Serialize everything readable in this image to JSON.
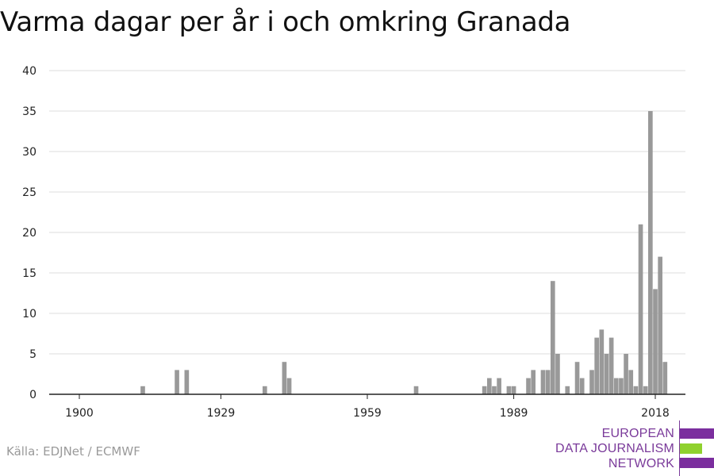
{
  "title": "Varma dagar per år i och omkring Granada",
  "source": "Källa: EDJNet / ECMWF",
  "logo": {
    "lines": [
      "EUROPEAN",
      "DATA JOURNALISM",
      "NETWORK"
    ],
    "colors": {
      "purple": "#7b2e9e",
      "green": "#8fd12e"
    }
  },
  "colors": {
    "bar": "#999999",
    "grid": "#dddddd",
    "axis": "#222222"
  },
  "chart_data": {
    "type": "bar",
    "title": "Varma dagar per år i och omkring Granada",
    "xlabel": "",
    "ylabel": "",
    "ylim": [
      0,
      40
    ],
    "yticks": [
      0,
      5,
      10,
      15,
      20,
      25,
      30,
      35,
      40
    ],
    "xticks": [
      "1900",
      "1929",
      "1959",
      "1989",
      "2018"
    ],
    "xlim": [
      1894,
      2024
    ],
    "grid": true,
    "x": [
      1913,
      1920,
      1922,
      1938,
      1942,
      1943,
      1969,
      1983,
      1984,
      1985,
      1986,
      1988,
      1989,
      1992,
      1993,
      1995,
      1996,
      1997,
      1998,
      2000,
      2002,
      2003,
      2005,
      2006,
      2007,
      2008,
      2009,
      2010,
      2011,
      2012,
      2013,
      2014,
      2015,
      2016,
      2017,
      2018,
      2019,
      2020,
      2021
    ],
    "values": [
      1,
      3,
      3,
      1,
      4,
      2,
      1,
      1,
      2,
      1,
      2,
      1,
      1,
      2,
      3,
      3,
      3,
      14,
      5,
      1,
      4,
      2,
      3,
      7,
      8,
      5,
      7,
      2,
      2,
      5,
      3,
      1,
      21,
      1,
      35,
      13,
      17,
      4,
      0
    ]
  }
}
